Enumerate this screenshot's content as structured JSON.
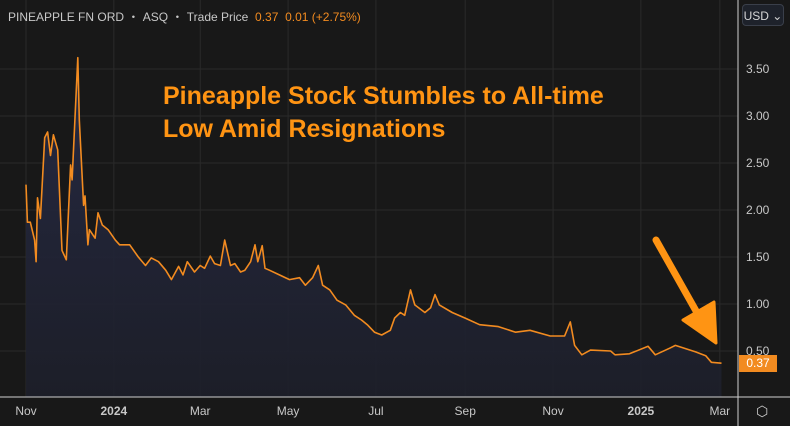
{
  "header": {
    "instrument": "PINEAPPLE FN ORD",
    "exchange": "ASQ",
    "price_type": "Trade Price",
    "last": "0.37",
    "change": "0.01",
    "change_pct": "(+2.75%)",
    "separator": "・"
  },
  "currency_button": "USD ⌄",
  "settings_icon": "hexagon-settings-icon",
  "colors": {
    "line": "#f28b20",
    "background": "#181818",
    "title": "#ff9413",
    "fill": "#222538"
  },
  "chart_data": {
    "type": "area",
    "title": "Pineapple Stock Stumbles to All-time Low Amid Resignations",
    "title_lines": [
      "Pineapple Stock Stumbles to All-time",
      "Low Amid Resignations"
    ],
    "xlim": [
      "2023-10-31",
      "2025-03-10"
    ],
    "ylim": [
      0.2,
      3.8
    ],
    "grid": true,
    "y_ticks": [
      "0.50",
      "1.00",
      "1.50",
      "2.00",
      "2.50",
      "3.00",
      "3.50"
    ],
    "x_ticks": [
      {
        "date": "2023-11-01",
        "label": "Nov",
        "bold": false
      },
      {
        "date": "2024-01-01",
        "label": "2024",
        "bold": true
      },
      {
        "date": "2024-03-01",
        "label": "Mar",
        "bold": false
      },
      {
        "date": "2024-05-01",
        "label": "May",
        "bold": false
      },
      {
        "date": "2024-07-01",
        "label": "Jul",
        "bold": false
      },
      {
        "date": "2024-09-01",
        "label": "Sep",
        "bold": false
      },
      {
        "date": "2024-11-01",
        "label": "Nov",
        "bold": false
      },
      {
        "date": "2025-01-01",
        "label": "2025",
        "bold": true
      },
      {
        "date": "2025-03-01",
        "label": "Mar",
        "bold": false
      }
    ],
    "last_price_label": "0.37",
    "annotation": "down-arrow pointing to latest price",
    "points": [
      [
        "2023-11-01",
        2.27
      ],
      [
        "2023-11-02",
        1.87
      ],
      [
        "2023-11-04",
        1.87
      ],
      [
        "2023-11-07",
        1.68
      ],
      [
        "2023-11-08",
        1.45
      ],
      [
        "2023-11-09",
        2.13
      ],
      [
        "2023-11-11",
        1.91
      ],
      [
        "2023-11-14",
        2.77
      ],
      [
        "2023-11-16",
        2.83
      ],
      [
        "2023-11-18",
        2.58
      ],
      [
        "2023-11-20",
        2.8
      ],
      [
        "2023-11-23",
        2.64
      ],
      [
        "2023-11-26",
        1.57
      ],
      [
        "2023-11-29",
        1.47
      ],
      [
        "2023-12-02",
        2.48
      ],
      [
        "2023-12-03",
        2.32
      ],
      [
        "2023-12-07",
        3.62
      ],
      [
        "2023-12-08",
        2.96
      ],
      [
        "2023-12-11",
        2.05
      ],
      [
        "2023-12-12",
        2.15
      ],
      [
        "2023-12-14",
        1.63
      ],
      [
        "2023-12-15",
        1.79
      ],
      [
        "2023-12-19",
        1.7
      ],
      [
        "2023-12-21",
        1.97
      ],
      [
        "2023-12-24",
        1.84
      ],
      [
        "2023-12-28",
        1.79
      ],
      [
        "2024-01-02",
        1.68
      ],
      [
        "2024-01-05",
        1.63
      ],
      [
        "2024-01-12",
        1.63
      ],
      [
        "2024-01-18",
        1.5
      ],
      [
        "2024-01-23",
        1.41
      ],
      [
        "2024-01-27",
        1.49
      ],
      [
        "2024-02-01",
        1.45
      ],
      [
        "2024-02-06",
        1.36
      ],
      [
        "2024-02-10",
        1.26
      ],
      [
        "2024-02-15",
        1.4
      ],
      [
        "2024-02-18",
        1.31
      ],
      [
        "2024-02-21",
        1.45
      ],
      [
        "2024-02-26",
        1.34
      ],
      [
        "2024-03-01",
        1.41
      ],
      [
        "2024-03-04",
        1.38
      ],
      [
        "2024-03-08",
        1.51
      ],
      [
        "2024-03-11",
        1.43
      ],
      [
        "2024-03-15",
        1.41
      ],
      [
        "2024-03-18",
        1.68
      ],
      [
        "2024-03-22",
        1.41
      ],
      [
        "2024-03-25",
        1.43
      ],
      [
        "2024-03-29",
        1.34
      ],
      [
        "2024-04-01",
        1.36
      ],
      [
        "2024-04-05",
        1.45
      ],
      [
        "2024-04-08",
        1.63
      ],
      [
        "2024-04-10",
        1.45
      ],
      [
        "2024-04-13",
        1.62
      ],
      [
        "2024-04-15",
        1.38
      ],
      [
        "2024-04-18",
        1.36
      ],
      [
        "2024-04-25",
        1.31
      ],
      [
        "2024-05-02",
        1.26
      ],
      [
        "2024-05-09",
        1.28
      ],
      [
        "2024-05-13",
        1.2
      ],
      [
        "2024-05-18",
        1.28
      ],
      [
        "2024-05-22",
        1.41
      ],
      [
        "2024-05-25",
        1.2
      ],
      [
        "2024-05-30",
        1.15
      ],
      [
        "2024-06-04",
        1.04
      ],
      [
        "2024-06-10",
        0.99
      ],
      [
        "2024-06-16",
        0.88
      ],
      [
        "2024-06-21",
        0.83
      ],
      [
        "2024-06-25",
        0.78
      ],
      [
        "2024-06-30",
        0.7
      ],
      [
        "2024-07-05",
        0.67
      ],
      [
        "2024-07-11",
        0.72
      ],
      [
        "2024-07-14",
        0.85
      ],
      [
        "2024-07-18",
        0.91
      ],
      [
        "2024-07-21",
        0.88
      ],
      [
        "2024-07-25",
        1.15
      ],
      [
        "2024-07-28",
        0.99
      ],
      [
        "2024-08-04",
        0.91
      ],
      [
        "2024-08-08",
        0.96
      ],
      [
        "2024-08-11",
        1.1
      ],
      [
        "2024-08-14",
        0.99
      ],
      [
        "2024-08-23",
        0.91
      ],
      [
        "2024-09-01",
        0.85
      ],
      [
        "2024-09-11",
        0.78
      ],
      [
        "2024-09-24",
        0.76
      ],
      [
        "2024-10-06",
        0.7
      ],
      [
        "2024-10-16",
        0.72
      ],
      [
        "2024-10-30",
        0.66
      ],
      [
        "2024-11-09",
        0.66
      ],
      [
        "2024-11-13",
        0.81
      ],
      [
        "2024-11-16",
        0.56
      ],
      [
        "2024-11-21",
        0.46
      ],
      [
        "2024-11-27",
        0.51
      ],
      [
        "2024-12-11",
        0.5
      ],
      [
        "2024-12-14",
        0.46
      ],
      [
        "2024-12-24",
        0.47
      ],
      [
        "2025-01-06",
        0.55
      ],
      [
        "2025-01-11",
        0.46
      ],
      [
        "2025-01-21",
        0.53
      ],
      [
        "2025-01-25",
        0.56
      ],
      [
        "2025-02-08",
        0.49
      ],
      [
        "2025-02-15",
        0.45
      ],
      [
        "2025-02-19",
        0.38
      ],
      [
        "2025-02-26",
        0.37
      ]
    ]
  }
}
